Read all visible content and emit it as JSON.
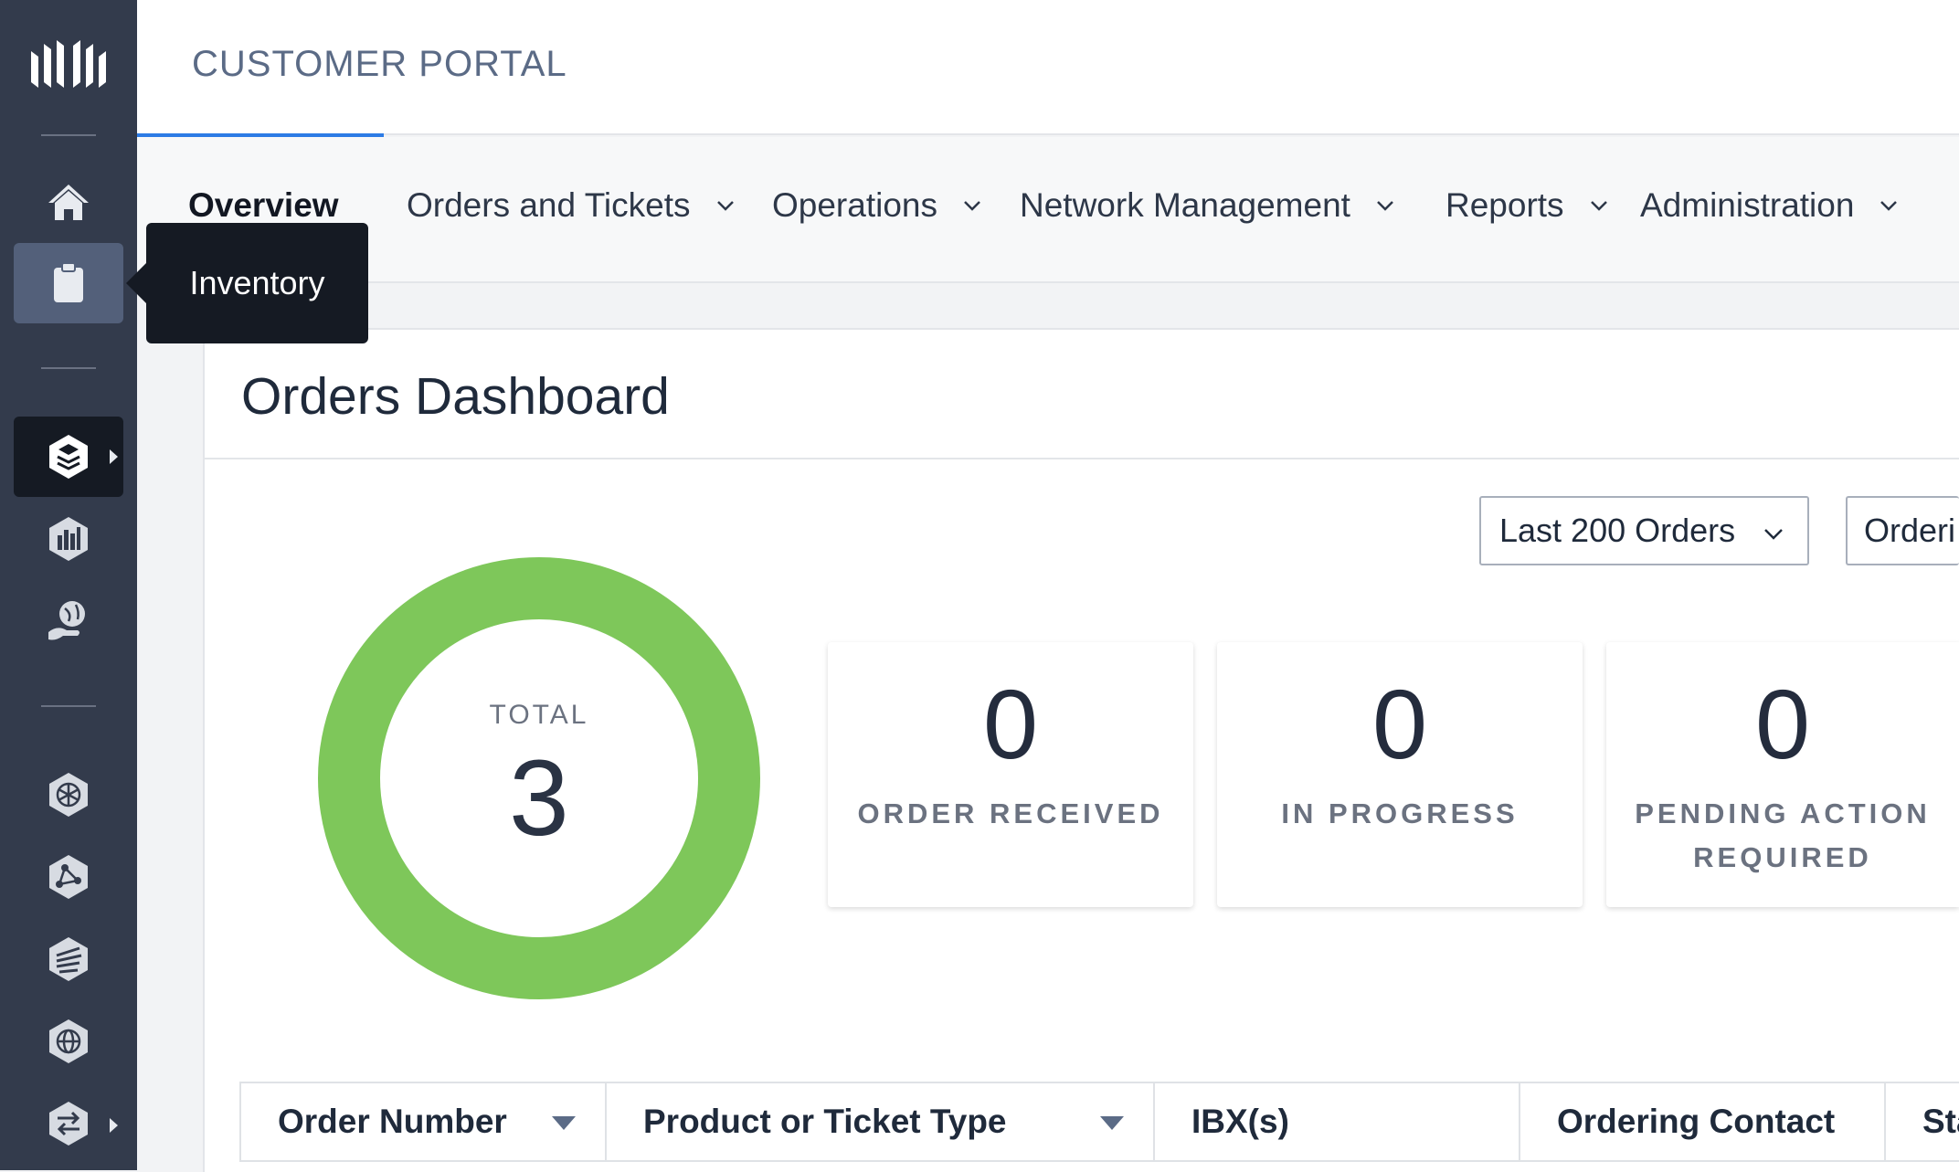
{
  "header": {
    "portal_title": "CUSTOMER PORTAL"
  },
  "tooltip": {
    "text": "Inventory"
  },
  "sidebar": {
    "items": [
      {
        "icon": "home-icon"
      },
      {
        "icon": "clipboard-icon"
      },
      {
        "icon": "stack-hexagon-icon"
      },
      {
        "icon": "bar-chart-hexagon-icon"
      },
      {
        "icon": "globe-hand-icon"
      },
      {
        "icon": "network-hexagon-icon"
      },
      {
        "icon": "connection-hexagon-icon"
      },
      {
        "icon": "lines-hexagon-icon"
      },
      {
        "icon": "globe-hexagon-icon"
      },
      {
        "icon": "exchange-arrows-icon"
      }
    ]
  },
  "nav": {
    "overview": "Overview",
    "orders": "Orders and Tickets",
    "operations": "Operations",
    "network": "Network Management",
    "reports": "Reports",
    "administration": "Administration"
  },
  "dashboard": {
    "title": "Orders Dashboard",
    "filter_select": "Last 200 Orders",
    "second_select": "Orderi",
    "total_label": "TOTAL",
    "total_value": "3",
    "stats": [
      {
        "value": "0",
        "label": "ORDER RECEIVED"
      },
      {
        "value": "0",
        "label": "IN PROGRESS"
      },
      {
        "value": "0",
        "label_line1": "PENDING ACTION",
        "label_line2": "REQUIRED"
      }
    ],
    "donut_color": "#7ec75a"
  },
  "table": {
    "columns": [
      "Order Number",
      "Product or Ticket Type",
      "IBX(s)",
      "Ordering Contact",
      "Sta"
    ]
  },
  "colors": {
    "accent": "#2d7be5",
    "sidebar": "#333b4c"
  }
}
